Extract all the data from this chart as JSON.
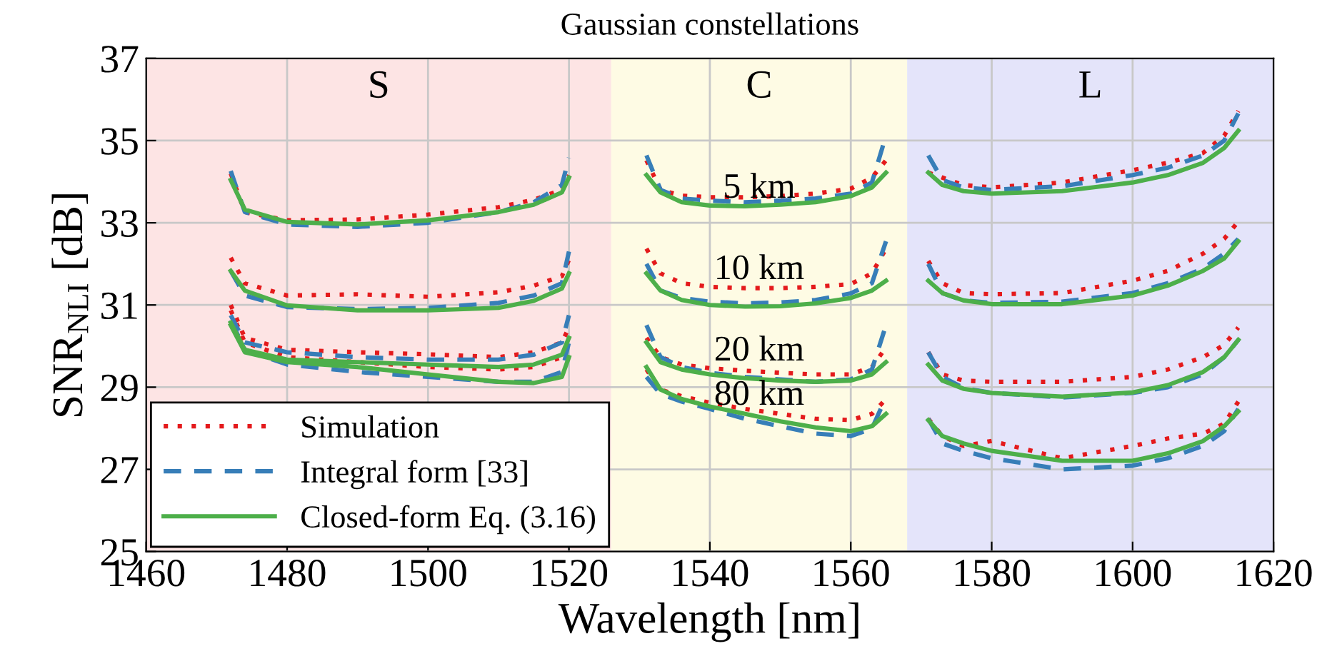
{
  "chart_data": {
    "type": "line",
    "title": "Gaussian constellations",
    "xlabel": "Wavelength [nm]",
    "ylabel": "SNR$_{NLI}$ [dB]",
    "xlim": [
      1460,
      1620
    ],
    "ylim": [
      25,
      37
    ],
    "xticks": [
      1460,
      1480,
      1500,
      1520,
      1540,
      1560,
      1580,
      1600,
      1620
    ],
    "yticks": [
      25,
      27,
      29,
      31,
      33,
      35,
      37
    ],
    "grid": true,
    "legend": "bottom left",
    "bands": [
      {
        "axis": "x",
        "from": 1460,
        "to": 1526,
        "label": "S",
        "color": "#fde4e4"
      },
      {
        "axis": "x",
        "from": 1526,
        "to": 1568,
        "label": "C",
        "color": "#fefbe4"
      },
      {
        "axis": "x",
        "from": 1568,
        "to": 1620,
        "label": "L",
        "color": "#e4e4fa"
      }
    ],
    "annotations": [
      "5 km",
      "10 km",
      "20 km",
      "80 km"
    ],
    "series": [
      {
        "name": "Simulation",
        "color": "#e41a1c",
        "line_style": "dotted",
        "x": [
          1472,
          1474,
          1480,
          1490,
          1500,
          1510,
          1515,
          1519,
          1520,
          null,
          1472,
          1474,
          1480,
          1490,
          1500,
          1510,
          1515,
          1519,
          1520,
          null,
          1472,
          1474,
          1480,
          1490,
          1500,
          1510,
          1515,
          1519,
          1520,
          null,
          1472,
          1474,
          1480,
          1490,
          1500,
          1510,
          1515,
          1519,
          1520,
          null,
          1531,
          1533,
          1536,
          1540,
          1545,
          1550,
          1555,
          1560,
          1563,
          1565,
          null,
          1531,
          1533,
          1536,
          1540,
          1545,
          1550,
          1555,
          1560,
          1563,
          1565,
          null,
          1531,
          1533,
          1536,
          1540,
          1545,
          1550,
          1555,
          1560,
          1563,
          1565,
          null,
          1531,
          1533,
          1536,
          1540,
          1545,
          1550,
          1555,
          1560,
          1563,
          1565,
          null,
          1571,
          1573,
          1576,
          1580,
          1590,
          1600,
          1605,
          1610,
          1613,
          1615,
          null,
          1571,
          1573,
          1576,
          1580,
          1590,
          1600,
          1605,
          1610,
          1613,
          1615,
          null,
          1571,
          1573,
          1576,
          1580,
          1590,
          1600,
          1605,
          1610,
          1613,
          1615,
          null,
          1571,
          1573,
          1576,
          1580,
          1590,
          1600,
          1605,
          1610,
          1613,
          1615
        ],
        "values": [
          34.2,
          33.26,
          33.06,
          33.08,
          33.2,
          33.38,
          33.56,
          33.8,
          34.16,
          null,
          32.15,
          31.53,
          31.23,
          31.26,
          31.2,
          31.31,
          31.47,
          31.7,
          32.1,
          null,
          31.0,
          30.2,
          29.91,
          29.85,
          29.8,
          29.73,
          29.85,
          30.09,
          30.45,
          null,
          30.87,
          30.09,
          29.73,
          29.61,
          29.49,
          29.43,
          29.49,
          29.73,
          30.2,
          null,
          34.52,
          33.8,
          33.66,
          33.62,
          33.62,
          33.65,
          33.71,
          33.83,
          34.1,
          34.52,
          null,
          32.37,
          31.77,
          31.53,
          31.44,
          31.41,
          31.41,
          31.44,
          31.51,
          31.77,
          32.37,
          null,
          30.2,
          29.73,
          29.55,
          29.46,
          29.4,
          29.35,
          29.31,
          29.31,
          29.49,
          29.97,
          null,
          29.43,
          28.94,
          28.78,
          28.62,
          28.47,
          28.35,
          28.23,
          28.2,
          28.35,
          28.71,
          null,
          34.22,
          34.1,
          33.92,
          33.86,
          33.98,
          34.28,
          34.46,
          34.7,
          35.12,
          35.72,
          null,
          32.07,
          31.53,
          31.29,
          31.26,
          31.29,
          31.59,
          31.83,
          32.25,
          32.61,
          33.03,
          null,
          29.85,
          29.31,
          29.16,
          29.13,
          29.13,
          29.25,
          29.43,
          29.73,
          30.03,
          30.45,
          null,
          28.23,
          27.81,
          27.57,
          27.69,
          27.27,
          27.57,
          27.75,
          27.87,
          28.11,
          28.65
        ]
      },
      {
        "name": "Integral form [33]",
        "color": "#377eb8",
        "line_style": "dashed",
        "x": [
          1472,
          1474,
          1480,
          1490,
          1500,
          1510,
          1515,
          1519,
          1520,
          null,
          1472,
          1474,
          1480,
          1490,
          1500,
          1510,
          1515,
          1519,
          1520,
          null,
          1472,
          1474,
          1480,
          1490,
          1500,
          1510,
          1515,
          1519,
          1520,
          null,
          1472,
          1474,
          1480,
          1490,
          1500,
          1510,
          1515,
          1519,
          1520,
          null,
          1531,
          1533,
          1536,
          1540,
          1545,
          1550,
          1555,
          1560,
          1563,
          1565,
          null,
          1531,
          1533,
          1536,
          1540,
          1545,
          1550,
          1555,
          1560,
          1563,
          1565,
          null,
          1531,
          1533,
          1536,
          1540,
          1545,
          1550,
          1555,
          1560,
          1563,
          1565,
          null,
          1531,
          1533,
          1536,
          1540,
          1545,
          1550,
          1555,
          1560,
          1563,
          1565,
          null,
          1571,
          1573,
          1576,
          1580,
          1590,
          1600,
          1605,
          1610,
          1613,
          1615,
          null,
          1571,
          1573,
          1576,
          1580,
          1590,
          1600,
          1605,
          1610,
          1613,
          1615,
          null,
          1571,
          1573,
          1576,
          1580,
          1590,
          1600,
          1605,
          1610,
          1613,
          1615,
          null,
          1571,
          1573,
          1576,
          1580,
          1590,
          1600,
          1605,
          1610,
          1613,
          1615
        ],
        "values": [
          34.26,
          33.26,
          32.96,
          32.9,
          33.0,
          33.26,
          33.5,
          33.92,
          34.58,
          null,
          31.83,
          31.23,
          30.95,
          30.9,
          30.93,
          31.05,
          31.23,
          31.53,
          32.3,
          null,
          30.75,
          30.09,
          29.85,
          29.73,
          29.67,
          29.67,
          29.79,
          30.09,
          30.75,
          null,
          30.63,
          29.91,
          29.55,
          29.37,
          29.25,
          29.13,
          29.13,
          29.37,
          30.09,
          null,
          34.64,
          33.8,
          33.59,
          33.54,
          33.5,
          33.54,
          33.59,
          33.71,
          33.98,
          35.12,
          null,
          32.0,
          31.35,
          31.17,
          31.08,
          31.04,
          31.06,
          31.12,
          31.28,
          31.53,
          32.55,
          null,
          30.51,
          29.73,
          29.49,
          29.35,
          29.25,
          29.19,
          29.13,
          29.19,
          29.43,
          30.51,
          null,
          29.25,
          28.83,
          28.65,
          28.47,
          28.23,
          28.05,
          27.87,
          27.81,
          27.99,
          28.76,
          null,
          34.64,
          34.04,
          33.86,
          33.8,
          33.89,
          34.16,
          34.34,
          34.64,
          35.0,
          35.66,
          null,
          32.0,
          31.29,
          31.11,
          31.05,
          31.08,
          31.29,
          31.53,
          31.89,
          32.25,
          32.61,
          null,
          29.85,
          29.25,
          28.98,
          28.86,
          28.75,
          28.86,
          29.0,
          29.31,
          29.73,
          30.15,
          null,
          28.23,
          27.63,
          27.45,
          27.27,
          27.0,
          27.09,
          27.27,
          27.57,
          27.93,
          28.47
        ]
      },
      {
        "name": "Closed-form Eq. (3.16)",
        "color": "#4daf4a",
        "line_style": "solid",
        "x": [
          1472,
          1474,
          1480,
          1490,
          1500,
          1510,
          1515,
          1519,
          1520,
          null,
          1472,
          1474,
          1480,
          1490,
          1500,
          1510,
          1515,
          1519,
          1520,
          null,
          1472,
          1474,
          1480,
          1490,
          1500,
          1510,
          1515,
          1519,
          1520,
          null,
          1472,
          1474,
          1480,
          1490,
          1500,
          1510,
          1515,
          1519,
          1520,
          null,
          1531,
          1533,
          1536,
          1540,
          1545,
          1550,
          1555,
          1560,
          1563,
          1565,
          null,
          1531,
          1533,
          1536,
          1540,
          1545,
          1550,
          1555,
          1560,
          1563,
          1565,
          null,
          1531,
          1533,
          1536,
          1540,
          1545,
          1550,
          1555,
          1560,
          1563,
          1565,
          null,
          1531,
          1533,
          1536,
          1540,
          1545,
          1550,
          1555,
          1560,
          1563,
          1565,
          null,
          1571,
          1573,
          1576,
          1580,
          1590,
          1600,
          1605,
          1610,
          1613,
          1615,
          null,
          1571,
          1573,
          1576,
          1580,
          1590,
          1600,
          1605,
          1610,
          1613,
          1615,
          null,
          1571,
          1573,
          1576,
          1580,
          1590,
          1600,
          1605,
          1610,
          1613,
          1615,
          null,
          1571,
          1573,
          1576,
          1580,
          1590,
          1600,
          1605,
          1610,
          1613,
          1615
        ],
        "values": [
          34.04,
          33.32,
          33.02,
          32.96,
          33.06,
          33.26,
          33.44,
          33.74,
          34.1,
          null,
          31.83,
          31.35,
          30.99,
          30.87,
          30.87,
          30.93,
          31.1,
          31.4,
          31.77,
          null,
          30.57,
          29.91,
          29.67,
          29.61,
          29.55,
          29.49,
          29.55,
          29.79,
          30.2,
          null,
          30.51,
          29.85,
          29.61,
          29.49,
          29.31,
          29.13,
          29.1,
          29.25,
          29.73,
          null,
          34.16,
          33.74,
          33.5,
          33.42,
          33.4,
          33.44,
          33.5,
          33.65,
          33.86,
          34.22,
          null,
          31.77,
          31.35,
          31.12,
          31.0,
          30.96,
          30.97,
          31.04,
          31.17,
          31.35,
          31.59,
          null,
          30.09,
          29.61,
          29.43,
          29.31,
          29.22,
          29.16,
          29.13,
          29.16,
          29.31,
          29.61,
          null,
          29.49,
          28.94,
          28.71,
          28.53,
          28.35,
          28.17,
          28.02,
          27.93,
          28.05,
          28.35,
          null,
          34.22,
          33.92,
          33.77,
          33.71,
          33.77,
          33.98,
          34.16,
          34.46,
          34.82,
          35.24,
          null,
          31.59,
          31.29,
          31.11,
          31.02,
          31.02,
          31.23,
          31.47,
          31.83,
          32.13,
          32.55,
          null,
          29.55,
          29.16,
          28.96,
          28.86,
          28.77,
          28.87,
          29.05,
          29.37,
          29.73,
          30.15,
          null,
          28.2,
          27.81,
          27.63,
          27.45,
          27.21,
          27.21,
          27.39,
          27.69,
          28.05,
          28.41
        ]
      }
    ]
  }
}
